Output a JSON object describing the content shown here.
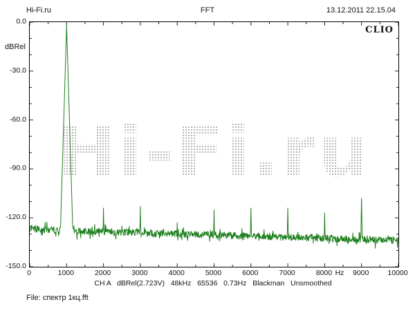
{
  "header": {
    "left": "Hi-Fi.ru",
    "center": "FFT",
    "right": "13.12.2011 22.15.04"
  },
  "chart": {
    "y_axis_unit": "dBRel",
    "x_axis_unit": "Hz",
    "brand": "CLIO",
    "watermark": "Hi-Fi.ru",
    "trace_color": "#1b7e1b",
    "tick_color": "#222222",
    "watermark_dot_color": "#b3b3b3"
  },
  "chart_data": {
    "type": "line",
    "title": "FFT",
    "xlabel": "Hz",
    "ylabel": "dBRel",
    "xlim": [
      0,
      10000
    ],
    "ylim": [
      -150,
      0
    ],
    "x_tick_values": [
      0,
      1000,
      2000,
      3000,
      4000,
      5000,
      6000,
      7000,
      8000,
      9000,
      10000
    ],
    "x_tick_labels": [
      "0",
      "1000",
      "2000",
      "3000",
      "4000",
      "5000",
      "6000",
      "7000",
      "8000",
      "9000",
      "10000"
    ],
    "y_tick_values": [
      0,
      -30,
      -60,
      -90,
      -120,
      -150
    ],
    "y_tick_labels": [
      "0.0",
      "-30.0",
      "-60.0",
      "-90.0",
      "-120.0",
      "-150.0"
    ],
    "x_minor_step": 500,
    "y_minor_step": 10,
    "fundamental": {
      "freq": 1000,
      "level_db": -2
    },
    "harmonics": [
      {
        "freq": 2000,
        "level_db": -114
      },
      {
        "freq": 3000,
        "level_db": -113
      },
      {
        "freq": 4000,
        "level_db": -123
      },
      {
        "freq": 5000,
        "level_db": -115
      },
      {
        "freq": 6000,
        "level_db": -114
      },
      {
        "freq": 7000,
        "level_db": -114
      },
      {
        "freq": 8000,
        "level_db": -117
      },
      {
        "freq": 9000,
        "level_db": -108
      }
    ],
    "noise_floor_left_db": -127,
    "noise_floor_right_db": -134,
    "noise_jitter_db": 4.2,
    "seed": 20111213
  },
  "status_line": {
    "items": [
      "CH A",
      "dBRel(2.723V)",
      "48kHz",
      "65536",
      "0.73Hz",
      "Blackman",
      "Unsmoothed"
    ]
  },
  "footer": {
    "file_label": "File: спектр 1кц.fft"
  }
}
